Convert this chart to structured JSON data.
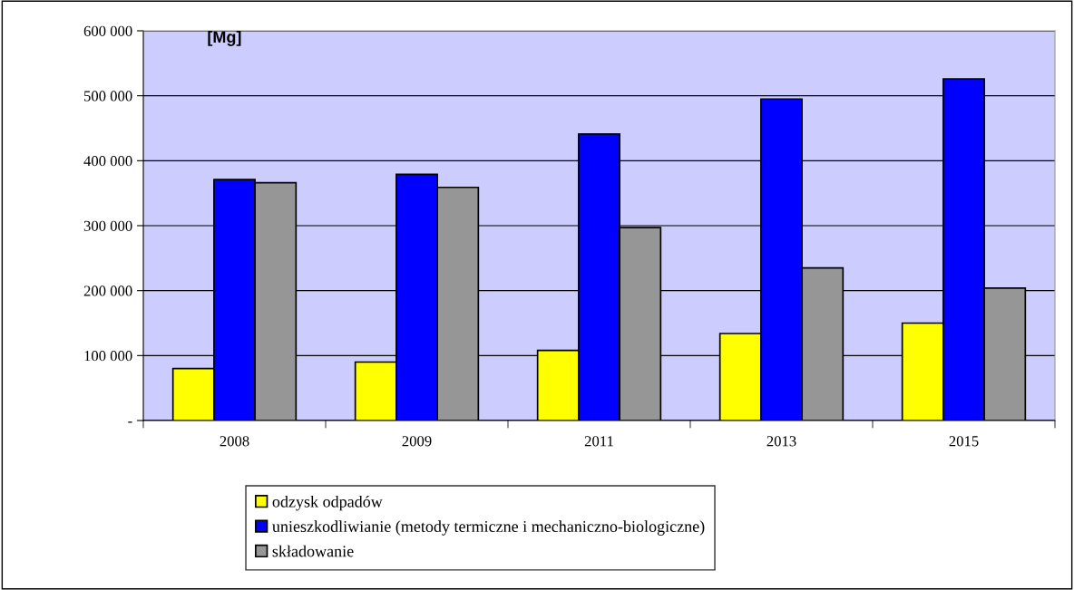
{
  "chart_data": {
    "type": "bar",
    "ylabel": "[Mg]",
    "categories": [
      "2008",
      "2009",
      "2011",
      "2013",
      "2015"
    ],
    "series": [
      {
        "name": "odzysk odpadów",
        "color": "#ffff00",
        "values": [
          80000,
          90000,
          108000,
          134000,
          150000
        ]
      },
      {
        "name": "unieszkodliwianie (metody termiczne i mechaniczno-biologiczne)",
        "color": "#0000ff",
        "values": [
          371000,
          379000,
          441000,
          495000,
          526000
        ]
      },
      {
        "name": "składowanie",
        "color": "#969696",
        "values": [
          366000,
          359000,
          297000,
          235000,
          204000
        ]
      }
    ],
    "ylim": [
      0,
      600000
    ],
    "yticks": [
      {
        "value": 0,
        "label": "-"
      },
      {
        "value": 100000,
        "label": "100 000"
      },
      {
        "value": 200000,
        "label": "200 000"
      },
      {
        "value": 300000,
        "label": "300 000"
      },
      {
        "value": 400000,
        "label": "400 000"
      },
      {
        "value": 500000,
        "label": "500 000"
      },
      {
        "value": 600000,
        "label": "600 000"
      }
    ],
    "grid": "y",
    "legend": "bottom"
  }
}
